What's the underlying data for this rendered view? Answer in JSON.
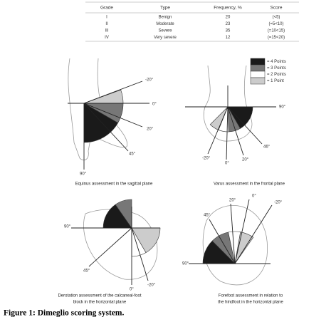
{
  "table": {
    "header": [
      "Grade",
      "Type",
      "Frequency, %",
      "Score"
    ],
    "rows": [
      [
        "I",
        "Benign",
        "20",
        "(<5)"
      ],
      [
        "II",
        "Moderate",
        "23",
        "(=5<10)"
      ],
      [
        "III",
        "Severe",
        "35",
        "(=10<15)"
      ],
      [
        "IV",
        "Very severe",
        "12",
        "(=15<20)"
      ]
    ]
  },
  "legend": [
    "= 4 Points",
    "= 3 Points",
    "= 2 Points",
    "= 1 Point"
  ],
  "diagrams": [
    {
      "angles": [
        "-20°",
        "0°",
        "20°",
        "45°",
        "90°"
      ],
      "caption": [
        "Equinus assessment in the sagittal plane"
      ]
    },
    {
      "angles": [
        "90°",
        "46°",
        "20°",
        "0°",
        "-20°"
      ],
      "caption": [
        "Varus assessment in the frontal plane"
      ]
    },
    {
      "angles": [
        "90°",
        "45°",
        "0°",
        "-20°"
      ],
      "caption": [
        "Derotation assessment of the calcaneal-foot",
        "block in the horizontal plane"
      ]
    },
    {
      "angles": [
        "90°",
        "45°",
        "20°",
        "0°",
        "-20°"
      ],
      "caption": [
        "Forefoot assessment in relation to",
        "the hindfoot in the horizontal plane"
      ]
    }
  ],
  "figure_caption": "Figure 1: Dimeglio scoring system."
}
